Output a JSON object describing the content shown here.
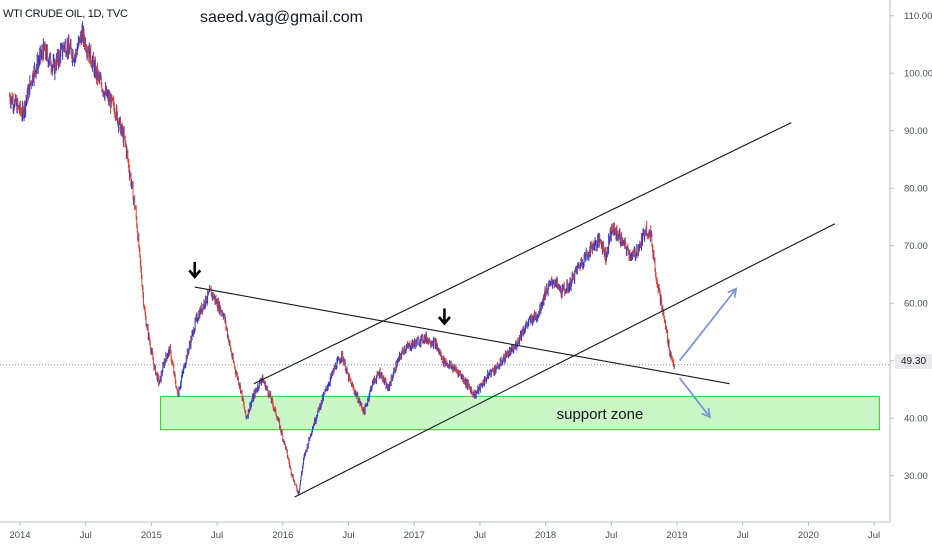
{
  "header": {
    "title": "WTI CRUDE OIL, 1D, TVC",
    "email": "saeed.vag@gmail.com"
  },
  "colors": {
    "up_candle": "#2d3bd1",
    "down_candle": "#d6453a",
    "trendline": "#131722",
    "support_fill": "#b7f3b0",
    "support_border": "#2ec82e",
    "arrow_blue": "#7f95d6",
    "axis_text": "#4a4e59",
    "grid_axis": "#b8bcc4"
  },
  "chart_data": {
    "type": "candlestick",
    "title": "WTI CRUDE OIL, 1D, TVC",
    "y_axis": {
      "ticks": [
        "110.00",
        "100.00",
        "90.00",
        "80.00",
        "70.00",
        "60.00",
        "50.00",
        "40.00",
        "30.00"
      ],
      "tick_values": [
        110,
        100,
        90,
        80,
        70,
        60,
        50,
        40,
        30
      ],
      "range": [
        23,
        112
      ]
    },
    "x_axis": {
      "labels": [
        "2014",
        "Jul",
        "2015",
        "Jul",
        "2016",
        "Jul",
        "2017",
        "Jul",
        "2018",
        "Jul",
        "2019",
        "Jul",
        "2020",
        "Jul"
      ],
      "label_times": [
        2014.0,
        2014.5,
        2015.0,
        2015.5,
        2016.0,
        2016.5,
        2017.0,
        2017.5,
        2018.0,
        2018.5,
        2019.0,
        2019.5,
        2020.0,
        2020.5
      ],
      "range": [
        2013.92,
        2020.54
      ]
    },
    "last_price": "49.30",
    "price_path": [
      [
        2013.92,
        96
      ],
      [
        2014.02,
        93
      ],
      [
        2014.1,
        100
      ],
      [
        2014.18,
        104
      ],
      [
        2014.26,
        101
      ],
      [
        2014.34,
        105
      ],
      [
        2014.42,
        103
      ],
      [
        2014.47,
        107
      ],
      [
        2014.52,
        104
      ],
      [
        2014.58,
        100
      ],
      [
        2014.66,
        96
      ],
      [
        2014.72,
        94
      ],
      [
        2014.8,
        88
      ],
      [
        2014.88,
        76
      ],
      [
        2014.95,
        58
      ],
      [
        2015.02,
        49
      ],
      [
        2015.06,
        46
      ],
      [
        2015.1,
        50
      ],
      [
        2015.14,
        52
      ],
      [
        2015.2,
        44
      ],
      [
        2015.26,
        50
      ],
      [
        2015.34,
        57
      ],
      [
        2015.4,
        60
      ],
      [
        2015.45,
        62
      ],
      [
        2015.5,
        60
      ],
      [
        2015.55,
        58
      ],
      [
        2015.62,
        50
      ],
      [
        2015.68,
        45
      ],
      [
        2015.72,
        40
      ],
      [
        2015.78,
        44
      ],
      [
        2015.84,
        47
      ],
      [
        2015.9,
        44
      ],
      [
        2015.96,
        40
      ],
      [
        2016.02,
        35
      ],
      [
        2016.06,
        31
      ],
      [
        2016.1,
        28
      ],
      [
        2016.12,
        27
      ],
      [
        2016.16,
        33
      ],
      [
        2016.22,
        38
      ],
      [
        2016.28,
        42
      ],
      [
        2016.33,
        45
      ],
      [
        2016.4,
        49
      ],
      [
        2016.45,
        51
      ],
      [
        2016.5,
        47
      ],
      [
        2016.56,
        44
      ],
      [
        2016.62,
        41
      ],
      [
        2016.68,
        46
      ],
      [
        2016.74,
        48
      ],
      [
        2016.8,
        45
      ],
      [
        2016.86,
        49
      ],
      [
        2016.92,
        52
      ],
      [
        2017.0,
        53
      ],
      [
        2017.08,
        54
      ],
      [
        2017.16,
        53
      ],
      [
        2017.22,
        50
      ],
      [
        2017.28,
        49
      ],
      [
        2017.34,
        48
      ],
      [
        2017.4,
        46
      ],
      [
        2017.46,
        44
      ],
      [
        2017.52,
        46
      ],
      [
        2017.58,
        48
      ],
      [
        2017.64,
        49
      ],
      [
        2017.7,
        51
      ],
      [
        2017.76,
        52
      ],
      [
        2017.82,
        55
      ],
      [
        2017.88,
        57
      ],
      [
        2017.94,
        58
      ],
      [
        2018.0,
        62
      ],
      [
        2018.06,
        64
      ],
      [
        2018.12,
        62
      ],
      [
        2018.18,
        63
      ],
      [
        2018.24,
        66
      ],
      [
        2018.3,
        68
      ],
      [
        2018.36,
        70
      ],
      [
        2018.42,
        71
      ],
      [
        2018.46,
        68
      ],
      [
        2018.5,
        73
      ],
      [
        2018.55,
        72
      ],
      [
        2018.6,
        70
      ],
      [
        2018.66,
        68
      ],
      [
        2018.72,
        70
      ],
      [
        2018.76,
        73
      ],
      [
        2018.8,
        72
      ],
      [
        2018.84,
        65
      ],
      [
        2018.88,
        60
      ],
      [
        2018.92,
        55
      ],
      [
        2018.95,
        51
      ],
      [
        2018.98,
        49.3
      ]
    ],
    "support_zone": {
      "label": "support zone",
      "y_range": [
        38,
        43.8
      ],
      "x_range": [
        2015.07,
        2020.54
      ]
    },
    "trendlines": [
      {
        "from": [
          2015.33,
          62.8
        ],
        "to": [
          2019.4,
          46.0
        ]
      },
      {
        "from": [
          2015.78,
          46.0
        ],
        "to": [
          2019.87,
          91.4
        ]
      },
      {
        "from": [
          2016.09,
          26.3
        ],
        "to": [
          2020.2,
          73.8
        ]
      }
    ],
    "down_arrows": [
      {
        "x": 2015.33,
        "y": 64.4
      },
      {
        "x": 2017.23,
        "y": 56.3
      }
    ],
    "projection_arrows": [
      {
        "from": [
          2019.02,
          50.0
        ],
        "to": [
          2019.45,
          62.5
        ]
      },
      {
        "from": [
          2019.02,
          47.0
        ],
        "to": [
          2019.25,
          40.2
        ]
      }
    ],
    "grid": false,
    "legend": "none"
  }
}
